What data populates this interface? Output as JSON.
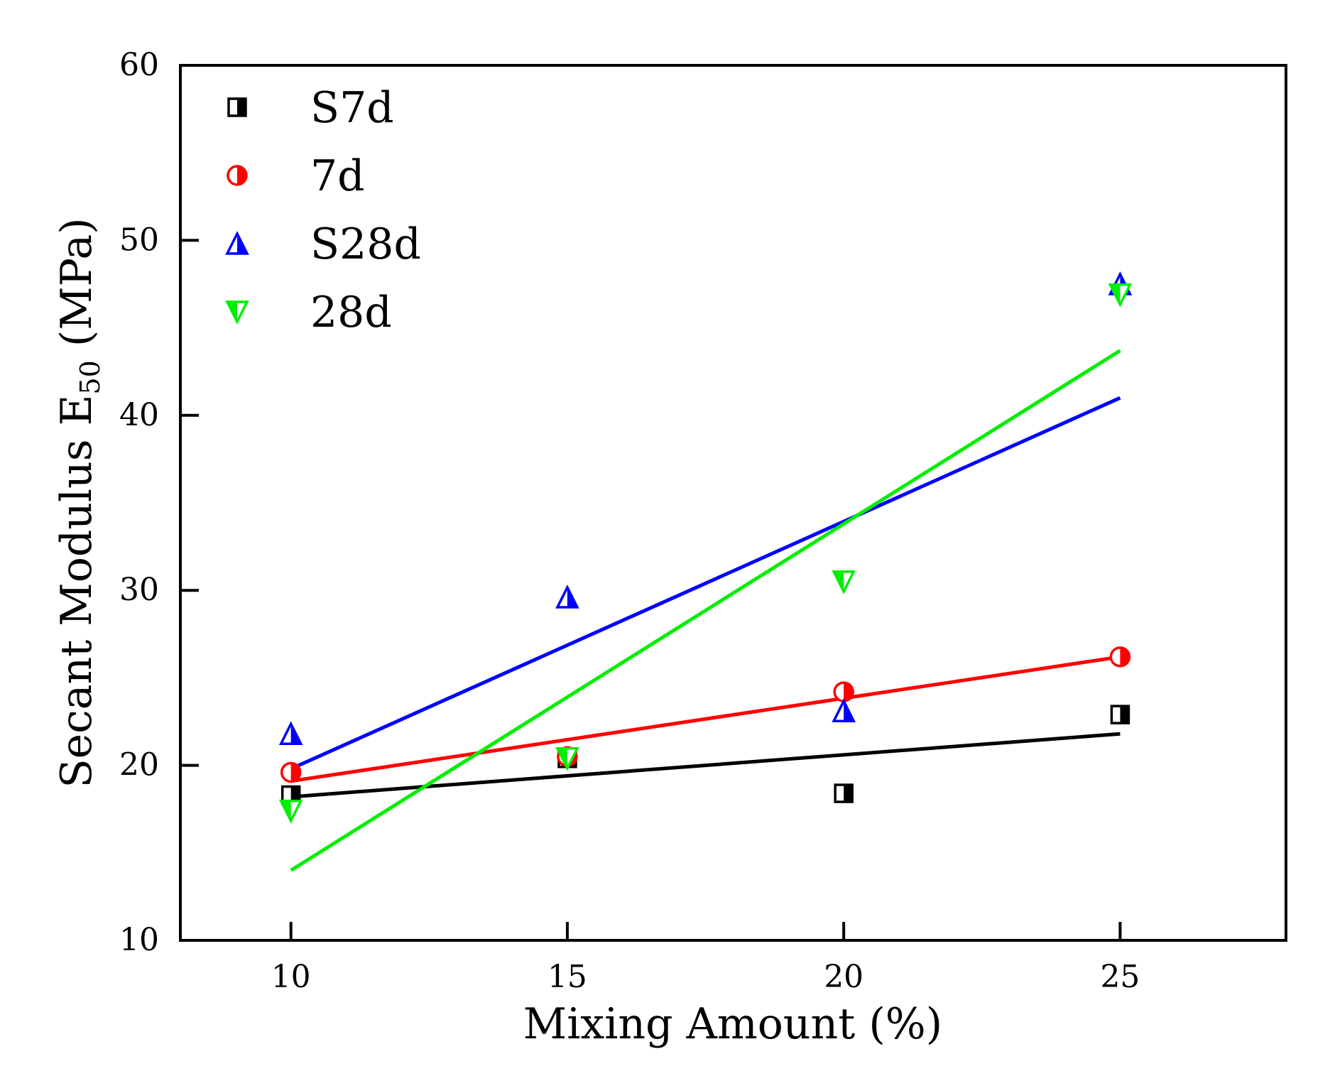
{
  "chart_data": {
    "type": "scatter",
    "title": "",
    "xlabel": "Mixing Amount (%)",
    "ylabel": {
      "main": "Secant Modulus E",
      "subscript": "50",
      "unit": " (MPa)"
    },
    "xlim": [
      8,
      28
    ],
    "ylim": [
      10,
      60
    ],
    "xticks": [
      "10",
      "15",
      "20",
      "25"
    ],
    "yticks": [
      "10",
      "20",
      "30",
      "40",
      "50",
      "60"
    ],
    "grid": false,
    "legend_position": "top-left",
    "series": [
      {
        "name": "S7d",
        "marker": "half-filled-square",
        "color": "#000000",
        "x": [
          10,
          15,
          20,
          25
        ],
        "y": [
          18.3,
          20.4,
          18.4,
          22.9
        ],
        "fit": [
          [
            10,
            18.2
          ],
          [
            25,
            21.8
          ]
        ]
      },
      {
        "name": "7d",
        "marker": "half-filled-circle",
        "color": "#ff0000",
        "x": [
          10,
          15,
          20,
          25
        ],
        "y": [
          19.6,
          20.5,
          24.2,
          26.2
        ],
        "fit": [
          [
            10,
            19.1
          ],
          [
            25,
            26.2
          ]
        ]
      },
      {
        "name": "S28d",
        "marker": "half-filled-triangle-up",
        "color": "#0000ff",
        "x": [
          10,
          15,
          20,
          25
        ],
        "y": [
          21.8,
          29.6,
          23.1,
          47.5
        ],
        "fit": [
          [
            10,
            19.8
          ],
          [
            25,
            41.0
          ]
        ]
      },
      {
        "name": "28d",
        "marker": "half-filled-triangle-down",
        "color": "#00ee00",
        "x": [
          10,
          15,
          20,
          25
        ],
        "y": [
          17.4,
          20.4,
          30.5,
          46.9
        ],
        "fit": [
          [
            10,
            14.0
          ],
          [
            25,
            43.7
          ]
        ]
      }
    ]
  }
}
